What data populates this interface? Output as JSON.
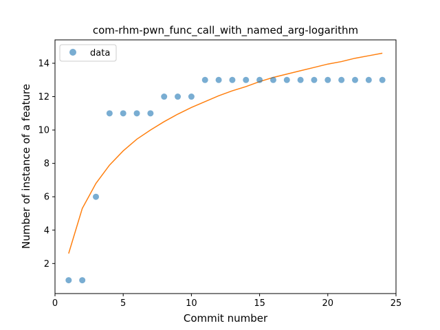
{
  "chart_data": {
    "type": "scatter",
    "title": "com-rhm-pwn_func_call_with_named_arg-logarithm",
    "xlabel": "Commit number",
    "ylabel": "Number of instance of a feature",
    "xlim": [
      0,
      25
    ],
    "ylim": [
      0.2,
      15.4
    ],
    "xticks": [
      0,
      5,
      10,
      15,
      20,
      25
    ],
    "yticks": [
      2,
      4,
      6,
      8,
      10,
      12,
      14
    ],
    "grid": false,
    "legend": {
      "position": "top-left",
      "entries": [
        "data"
      ]
    },
    "colors": {
      "data": "#1f77b4",
      "fit": "#ff7f0e"
    },
    "series": [
      {
        "name": "data",
        "kind": "scatter",
        "x": [
          1,
          2,
          3,
          4,
          5,
          6,
          7,
          8,
          9,
          10,
          11,
          12,
          13,
          14,
          15,
          16,
          17,
          18,
          19,
          20,
          21,
          22,
          23,
          24
        ],
        "y": [
          1,
          1,
          6,
          11,
          11,
          11,
          11,
          12,
          12,
          12,
          13,
          13,
          13,
          13,
          13,
          13,
          13,
          13,
          13,
          13,
          13,
          13,
          13,
          13
        ]
      },
      {
        "kind": "line",
        "x": [
          1,
          2,
          3,
          4,
          5,
          6,
          7,
          8,
          9,
          10,
          11,
          12,
          13,
          14,
          15,
          16,
          17,
          18,
          19,
          20,
          21,
          22,
          23,
          24
        ],
        "y": [
          2.6,
          5.3,
          6.8,
          7.9,
          8.75,
          9.45,
          10.0,
          10.5,
          10.95,
          11.35,
          11.7,
          12.05,
          12.35,
          12.6,
          12.9,
          13.15,
          13.35,
          13.55,
          13.75,
          13.95,
          14.1,
          14.3,
          14.45,
          14.6
        ]
      }
    ]
  }
}
